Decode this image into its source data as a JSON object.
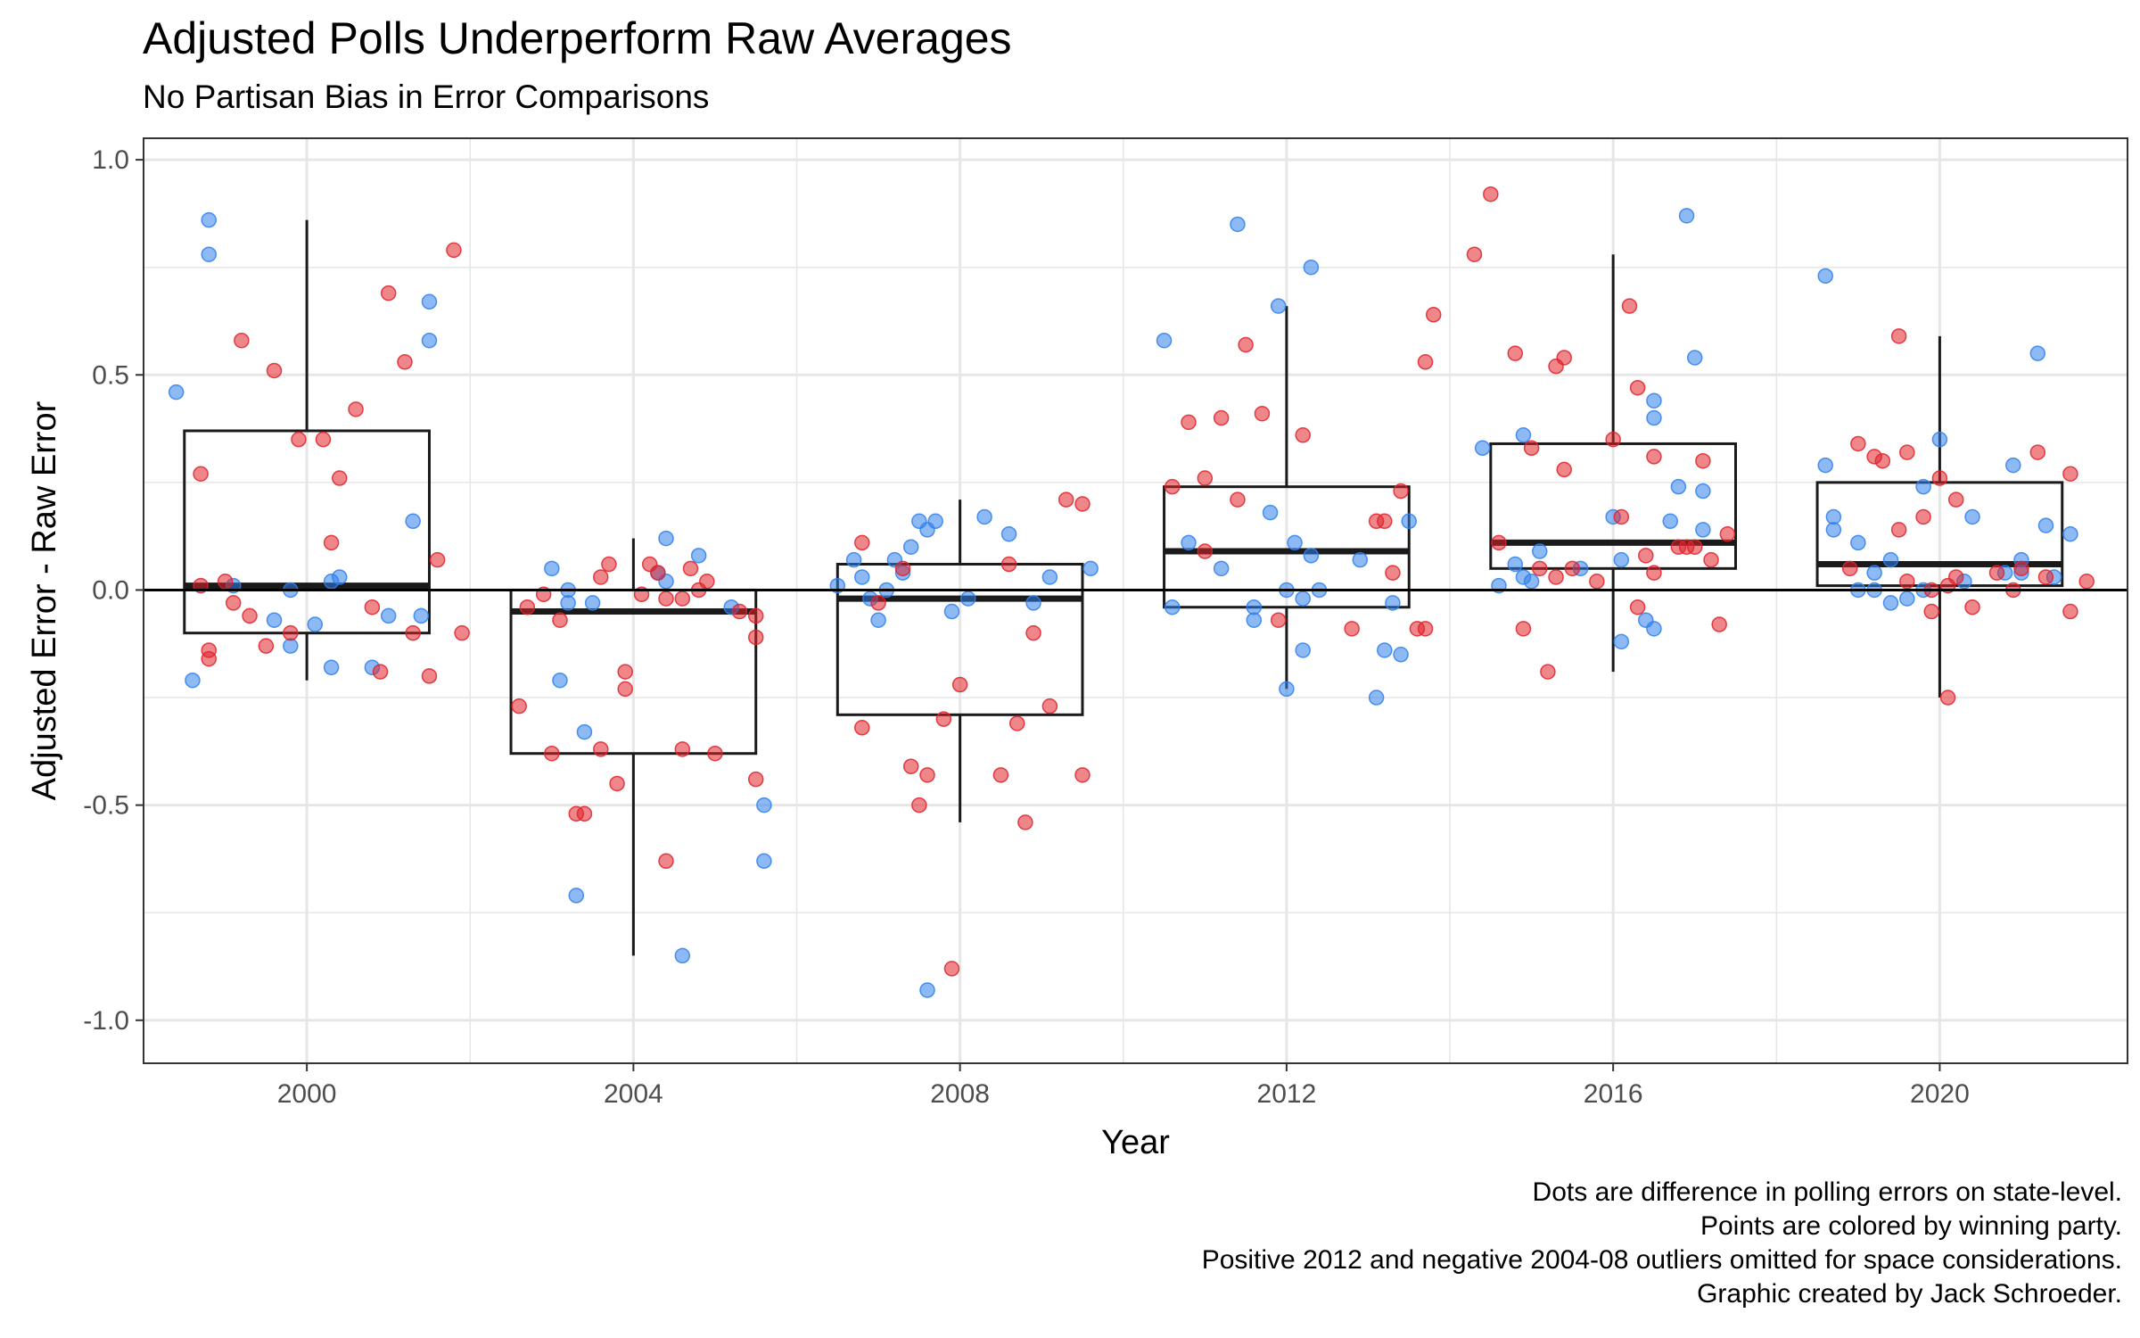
{
  "title": "Adjusted Polls Underperform Raw Averages",
  "subtitle": "No Partisan Bias in Error Comparisons",
  "caption": [
    "Dots are difference in polling errors on state-level.",
    "Points are colored by winning party.",
    "Positive 2012 and negative 2004-08 outliers omitted for space considerations.",
    "Graphic created by Jack Schroeder."
  ],
  "colors": {
    "dem": "#2f80ed",
    "rep": "#e0222a",
    "box": "#1a1a1a",
    "grid": "#e6e6e6",
    "panel_border": "#333333"
  },
  "chart_data": {
    "type": "scatter",
    "xlabel": "Year",
    "ylabel": "Adjusted Error - Raw Error",
    "xlim": [
      1998,
      2022.3
    ],
    "ylim": [
      -1.1,
      1.05
    ],
    "xticks": [
      2000,
      2004,
      2008,
      2012,
      2016,
      2020
    ],
    "yticks": [
      -1.0,
      -0.5,
      0.0,
      0.5,
      1.0
    ],
    "ytick_labels": [
      "-1.0",
      "-0.5",
      "0.0",
      "0.5",
      "1.0"
    ],
    "grid": true,
    "hline": 0,
    "boxplots": [
      {
        "year": 2000,
        "min": -0.21,
        "q1": -0.1,
        "median": 0.01,
        "q3": 0.37,
        "max": 0.86
      },
      {
        "year": 2004,
        "min": -0.85,
        "q1": -0.38,
        "median": -0.05,
        "q3": 0.0,
        "max": 0.12
      },
      {
        "year": 2008,
        "min": -0.54,
        "q1": -0.29,
        "median": -0.02,
        "q3": 0.06,
        "max": 0.21
      },
      {
        "year": 2012,
        "min": -0.23,
        "q1": -0.04,
        "median": 0.09,
        "q3": 0.24,
        "max": 0.66
      },
      {
        "year": 2016,
        "min": -0.19,
        "q1": 0.05,
        "median": 0.11,
        "q3": 0.34,
        "max": 0.78
      },
      {
        "year": 2020,
        "min": -0.25,
        "q1": 0.01,
        "median": 0.06,
        "q3": 0.25,
        "max": 0.59
      }
    ],
    "series": [
      {
        "party": "D",
        "points": [
          [
            1998.4,
            0.46
          ],
          [
            1998.8,
            0.86
          ],
          [
            1998.8,
            0.78
          ],
          [
            1998.6,
            -0.21
          ],
          [
            1999.1,
            0.01
          ],
          [
            1999.6,
            -0.07
          ],
          [
            1999.8,
            0.0
          ],
          [
            2000.1,
            -0.08
          ],
          [
            1999.8,
            -0.13
          ],
          [
            2000.3,
            0.02
          ],
          [
            2000.3,
            -0.18
          ],
          [
            2000.4,
            0.03
          ],
          [
            2000.8,
            -0.18
          ],
          [
            2001.0,
            -0.06
          ],
          [
            2001.3,
            0.16
          ],
          [
            2001.4,
            -0.06
          ],
          [
            2001.5,
            0.67
          ],
          [
            2001.5,
            0.58
          ],
          [
            2003.0,
            0.05
          ],
          [
            2003.1,
            -0.21
          ],
          [
            2003.2,
            -0.03
          ],
          [
            2003.2,
            0.0
          ],
          [
            2003.3,
            -0.71
          ],
          [
            2003.4,
            -0.33
          ],
          [
            2003.5,
            -0.03
          ],
          [
            2004.3,
            0.04
          ],
          [
            2004.4,
            0.12
          ],
          [
            2004.4,
            0.02
          ],
          [
            2004.6,
            -0.85
          ],
          [
            2004.8,
            0.08
          ],
          [
            2005.6,
            -0.5
          ],
          [
            2005.6,
            -0.63
          ],
          [
            2005.2,
            -0.04
          ],
          [
            2006.5,
            0.01
          ],
          [
            2006.7,
            0.07
          ],
          [
            2006.8,
            0.03
          ],
          [
            2006.9,
            -0.02
          ],
          [
            2007.0,
            -0.07
          ],
          [
            2007.1,
            0.0
          ],
          [
            2007.2,
            0.07
          ],
          [
            2007.3,
            0.04
          ],
          [
            2007.4,
            0.1
          ],
          [
            2007.5,
            0.16
          ],
          [
            2007.6,
            0.14
          ],
          [
            2007.7,
            0.16
          ],
          [
            2007.6,
            -0.93
          ],
          [
            2007.9,
            -0.05
          ],
          [
            2008.1,
            -0.02
          ],
          [
            2008.3,
            0.17
          ],
          [
            2008.6,
            0.13
          ],
          [
            2008.9,
            -0.03
          ],
          [
            2009.1,
            0.03
          ],
          [
            2009.6,
            0.05
          ],
          [
            2010.5,
            0.58
          ],
          [
            2010.6,
            -0.04
          ],
          [
            2010.8,
            0.11
          ],
          [
            2011.2,
            0.05
          ],
          [
            2011.4,
            0.85
          ],
          [
            2011.6,
            -0.04
          ],
          [
            2011.8,
            0.18
          ],
          [
            2011.6,
            -0.07
          ],
          [
            2011.9,
            0.66
          ],
          [
            2012.0,
            0.0
          ],
          [
            2012.0,
            -0.23
          ],
          [
            2012.1,
            0.11
          ],
          [
            2012.2,
            -0.02
          ],
          [
            2012.3,
            0.08
          ],
          [
            2012.2,
            -0.14
          ],
          [
            2012.3,
            0.75
          ],
          [
            2012.4,
            0.0
          ],
          [
            2012.9,
            0.07
          ],
          [
            2013.1,
            -0.25
          ],
          [
            2013.2,
            -0.14
          ],
          [
            2013.3,
            -0.03
          ],
          [
            2013.4,
            -0.15
          ],
          [
            2013.5,
            0.16
          ],
          [
            2014.4,
            0.33
          ],
          [
            2014.6,
            0.01
          ],
          [
            2014.8,
            0.06
          ],
          [
            2014.9,
            0.36
          ],
          [
            2014.9,
            0.03
          ],
          [
            2015.0,
            0.02
          ],
          [
            2015.1,
            0.09
          ],
          [
            2015.6,
            0.05
          ],
          [
            2016.0,
            0.17
          ],
          [
            2016.1,
            0.07
          ],
          [
            2016.1,
            -0.12
          ],
          [
            2016.4,
            -0.07
          ],
          [
            2016.5,
            -0.09
          ],
          [
            2016.5,
            0.4
          ],
          [
            2016.5,
            0.44
          ],
          [
            2016.7,
            0.16
          ],
          [
            2016.8,
            0.24
          ],
          [
            2016.9,
            0.87
          ],
          [
            2017.0,
            0.54
          ],
          [
            2017.1,
            0.23
          ],
          [
            2017.1,
            0.14
          ],
          [
            2018.6,
            0.73
          ],
          [
            2018.6,
            0.29
          ],
          [
            2018.7,
            0.17
          ],
          [
            2018.7,
            0.14
          ],
          [
            2019.0,
            0.11
          ],
          [
            2019.0,
            0.0
          ],
          [
            2019.2,
            0.04
          ],
          [
            2019.2,
            0.0
          ],
          [
            2019.4,
            -0.03
          ],
          [
            2019.4,
            0.07
          ],
          [
            2019.6,
            -0.02
          ],
          [
            2019.8,
            0.0
          ],
          [
            2019.8,
            0.24
          ],
          [
            2020.0,
            0.35
          ],
          [
            2020.3,
            0.02
          ],
          [
            2020.4,
            0.17
          ],
          [
            2020.8,
            0.04
          ],
          [
            2020.9,
            0.29
          ],
          [
            2021.0,
            0.07
          ],
          [
            2021.0,
            0.04
          ],
          [
            2021.2,
            0.55
          ],
          [
            2021.3,
            0.15
          ],
          [
            2021.4,
            0.03
          ],
          [
            2021.6,
            0.13
          ]
        ]
      },
      {
        "party": "R",
        "points": [
          [
            1998.7,
            0.27
          ],
          [
            1998.7,
            0.01
          ],
          [
            1998.8,
            -0.14
          ],
          [
            1998.8,
            -0.16
          ],
          [
            1999.0,
            0.02
          ],
          [
            1999.1,
            -0.03
          ],
          [
            1999.2,
            0.58
          ],
          [
            1999.3,
            -0.06
          ],
          [
            1999.5,
            -0.13
          ],
          [
            1999.6,
            0.51
          ],
          [
            1999.8,
            -0.1
          ],
          [
            1999.9,
            0.35
          ],
          [
            2000.2,
            0.35
          ],
          [
            2000.3,
            0.11
          ],
          [
            2000.4,
            0.26
          ],
          [
            2000.6,
            0.42
          ],
          [
            2000.8,
            -0.04
          ],
          [
            2000.9,
            -0.19
          ],
          [
            2001.0,
            0.69
          ],
          [
            2001.2,
            0.53
          ],
          [
            2001.3,
            -0.1
          ],
          [
            2001.5,
            -0.2
          ],
          [
            2001.6,
            0.07
          ],
          [
            2001.8,
            0.79
          ],
          [
            2001.9,
            -0.1
          ],
          [
            2002.6,
            -0.27
          ],
          [
            2002.7,
            -0.04
          ],
          [
            2002.9,
            -0.01
          ],
          [
            2003.0,
            -0.38
          ],
          [
            2003.1,
            -0.07
          ],
          [
            2003.3,
            -0.52
          ],
          [
            2003.4,
            -0.52
          ],
          [
            2003.6,
            -0.37
          ],
          [
            2003.6,
            0.03
          ],
          [
            2003.7,
            0.06
          ],
          [
            2003.8,
            -0.45
          ],
          [
            2003.9,
            -0.19
          ],
          [
            2003.9,
            -0.23
          ],
          [
            2004.1,
            -0.01
          ],
          [
            2004.2,
            0.06
          ],
          [
            2004.3,
            0.04
          ],
          [
            2004.4,
            -0.02
          ],
          [
            2004.4,
            -0.63
          ],
          [
            2004.6,
            -0.02
          ],
          [
            2004.6,
            -0.37
          ],
          [
            2004.7,
            0.05
          ],
          [
            2004.8,
            0.0
          ],
          [
            2004.9,
            0.02
          ],
          [
            2005.0,
            -0.38
          ],
          [
            2005.3,
            -0.05
          ],
          [
            2005.5,
            -0.06
          ],
          [
            2005.5,
            -0.11
          ],
          [
            2005.5,
            -0.44
          ],
          [
            2006.8,
            0.11
          ],
          [
            2006.8,
            -0.32
          ],
          [
            2007.0,
            -0.03
          ],
          [
            2007.3,
            0.05
          ],
          [
            2007.4,
            -0.41
          ],
          [
            2007.5,
            -0.5
          ],
          [
            2007.6,
            -0.43
          ],
          [
            2007.8,
            -0.3
          ],
          [
            2007.9,
            -0.88
          ],
          [
            2008.0,
            -0.22
          ],
          [
            2008.5,
            -0.43
          ],
          [
            2008.6,
            0.06
          ],
          [
            2008.7,
            -0.31
          ],
          [
            2008.8,
            -0.54
          ],
          [
            2008.9,
            -0.1
          ],
          [
            2009.1,
            -0.27
          ],
          [
            2009.3,
            0.21
          ],
          [
            2009.5,
            0.2
          ],
          [
            2009.5,
            -0.43
          ],
          [
            2010.6,
            0.24
          ],
          [
            2010.8,
            0.39
          ],
          [
            2011.0,
            0.26
          ],
          [
            2011.0,
            0.09
          ],
          [
            2011.2,
            0.4
          ],
          [
            2011.4,
            0.21
          ],
          [
            2011.5,
            0.57
          ],
          [
            2011.7,
            0.41
          ],
          [
            2011.9,
            -0.07
          ],
          [
            2012.2,
            0.36
          ],
          [
            2012.8,
            -0.09
          ],
          [
            2013.1,
            0.16
          ],
          [
            2013.2,
            0.16
          ],
          [
            2013.3,
            0.04
          ],
          [
            2013.4,
            0.23
          ],
          [
            2013.6,
            -0.09
          ],
          [
            2013.7,
            -0.09
          ],
          [
            2013.7,
            0.53
          ],
          [
            2013.8,
            0.64
          ],
          [
            2014.3,
            0.78
          ],
          [
            2014.5,
            0.92
          ],
          [
            2014.6,
            0.11
          ],
          [
            2014.8,
            0.55
          ],
          [
            2014.9,
            -0.09
          ],
          [
            2015.0,
            0.33
          ],
          [
            2015.1,
            0.05
          ],
          [
            2015.2,
            -0.19
          ],
          [
            2015.3,
            0.52
          ],
          [
            2015.3,
            0.03
          ],
          [
            2015.4,
            0.54
          ],
          [
            2015.4,
            0.28
          ],
          [
            2015.5,
            0.05
          ],
          [
            2015.8,
            0.02
          ],
          [
            2016.0,
            0.35
          ],
          [
            2016.1,
            0.17
          ],
          [
            2016.2,
            0.66
          ],
          [
            2016.3,
            0.47
          ],
          [
            2016.3,
            -0.04
          ],
          [
            2016.4,
            0.08
          ],
          [
            2016.5,
            0.31
          ],
          [
            2016.5,
            0.04
          ],
          [
            2016.8,
            0.1
          ],
          [
            2016.9,
            0.1
          ],
          [
            2017.0,
            0.1
          ],
          [
            2017.1,
            0.3
          ],
          [
            2017.2,
            0.07
          ],
          [
            2017.3,
            -0.08
          ],
          [
            2017.4,
            0.13
          ],
          [
            2018.9,
            0.05
          ],
          [
            2019.0,
            0.34
          ],
          [
            2019.2,
            0.31
          ],
          [
            2019.3,
            0.3
          ],
          [
            2019.5,
            0.59
          ],
          [
            2019.5,
            0.14
          ],
          [
            2019.6,
            0.32
          ],
          [
            2019.6,
            0.02
          ],
          [
            2019.8,
            0.17
          ],
          [
            2019.9,
            0.0
          ],
          [
            2019.9,
            -0.05
          ],
          [
            2020.0,
            0.26
          ],
          [
            2020.1,
            0.01
          ],
          [
            2020.2,
            0.21
          ],
          [
            2020.2,
            0.03
          ],
          [
            2020.1,
            -0.25
          ],
          [
            2020.4,
            -0.04
          ],
          [
            2020.7,
            0.04
          ],
          [
            2020.9,
            0.0
          ],
          [
            2021.0,
            0.05
          ],
          [
            2021.2,
            0.32
          ],
          [
            2021.3,
            0.03
          ],
          [
            2021.6,
            -0.05
          ],
          [
            2021.6,
            0.27
          ],
          [
            2021.8,
            0.02
          ]
        ]
      }
    ]
  }
}
